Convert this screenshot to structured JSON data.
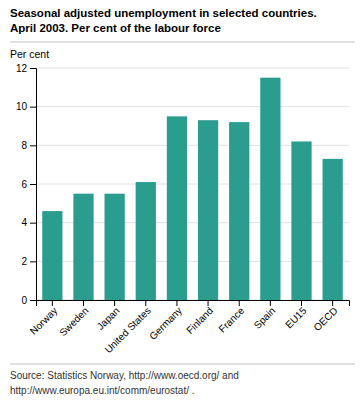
{
  "chart_data": {
    "type": "bar",
    "title": "Seasonal adjusted unemployment in selected countries.",
    "subtitle": "April 2003. Per cent of the labour force",
    "ylabel": "Per cent",
    "categories": [
      "Norway",
      "Sweden",
      "Japan",
      "United States",
      "Germany",
      "Finland",
      "France",
      "Spain",
      "EU15",
      "OECD"
    ],
    "values": [
      4.6,
      5.5,
      5.5,
      6.1,
      9.5,
      9.3,
      9.2,
      11.5,
      8.2,
      7.3
    ],
    "color": "#2a9d8f",
    "ylim": [
      0,
      12
    ],
    "yticks": [
      0,
      2,
      4,
      6,
      8,
      10,
      12
    ],
    "grid": true,
    "annotations": [
      "Source: Statistics Norway, http://www.oecd.org/ and",
      "http://www.europa.eu.int/comm/eurostat/ ."
    ]
  }
}
